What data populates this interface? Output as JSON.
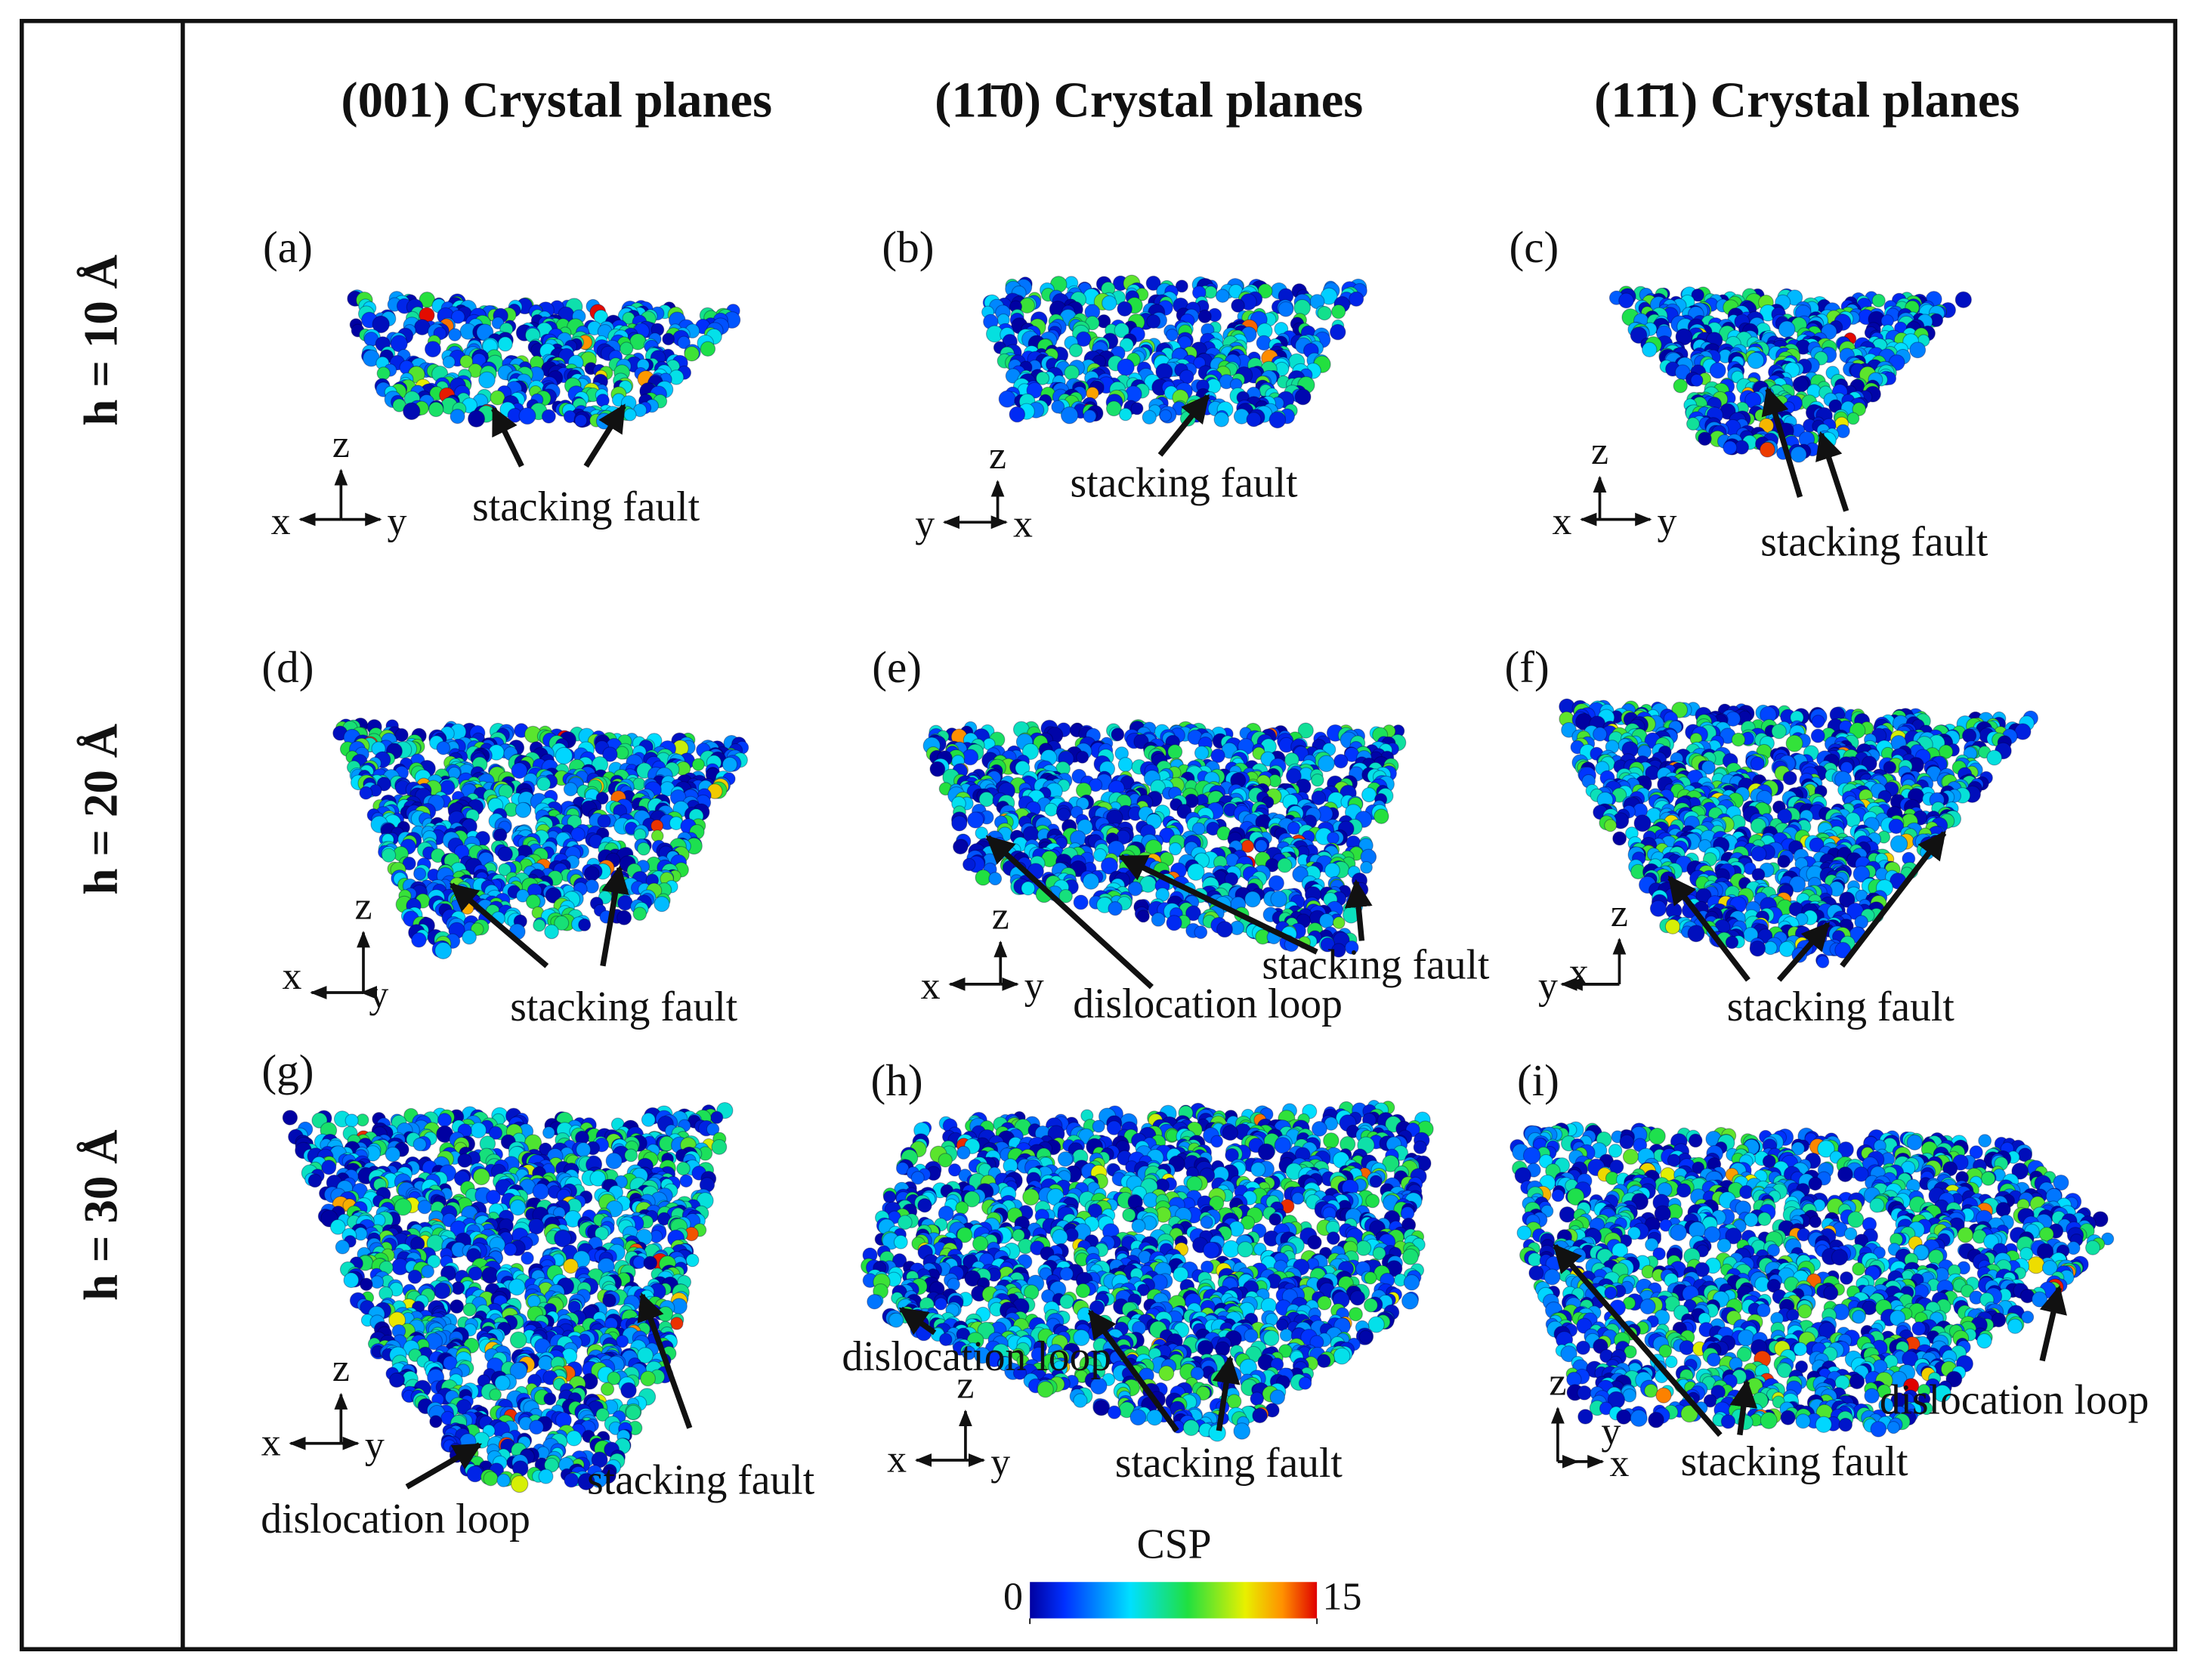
{
  "column_headers": [
    "(001) Crystal planes",
    "(11̄0) Crystal planes",
    "(11̄1) Crystal planes"
  ],
  "row_labels": [
    "h = 10 Å",
    "h = 20 Å",
    "h = 30 Å"
  ],
  "panels": [
    {
      "label": "(a)",
      "annotations": [
        "stacking fault"
      ],
      "axes": [
        "z",
        "x",
        "y"
      ]
    },
    {
      "label": "(b)",
      "annotations": [
        "stacking fault"
      ],
      "axes": [
        "z",
        "y",
        "x"
      ]
    },
    {
      "label": "(c)",
      "annotations": [
        "stacking fault"
      ],
      "axes": [
        "z",
        "x",
        "y"
      ]
    },
    {
      "label": "(d)",
      "annotations": [
        "stacking fault"
      ],
      "axes": [
        "z",
        "x",
        "y"
      ]
    },
    {
      "label": "(e)",
      "annotations": [
        "dislocation loop",
        "stacking fault"
      ],
      "axes": [
        "z",
        "x",
        "y"
      ]
    },
    {
      "label": "(f)",
      "annotations": [
        "stacking fault"
      ],
      "axes": [
        "z",
        "y",
        "x"
      ]
    },
    {
      "label": "(g)",
      "annotations": [
        "stacking fault",
        "dislocation loop"
      ],
      "axes": [
        "z",
        "x",
        "y"
      ]
    },
    {
      "label": "(h)",
      "annotations": [
        "dislocation loop",
        "stacking fault"
      ],
      "axes": [
        "z",
        "x",
        "y"
      ]
    },
    {
      "label": "(i)",
      "annotations": [
        "dislocation loop",
        "stacking fault"
      ],
      "axes": [
        "z",
        "y",
        "x"
      ]
    }
  ],
  "colorbar": {
    "title": "CSP",
    "ticks": [
      0,
      15
    ]
  }
}
